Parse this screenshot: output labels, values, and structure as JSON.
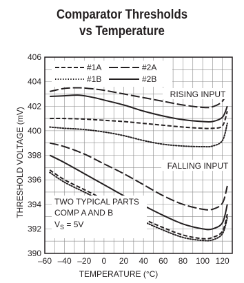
{
  "chart_data": {
    "type": "line",
    "title": [
      "Comparator Thresholds",
      "vs Temperature"
    ],
    "xlabel": "TEMPERATURE (°C)",
    "ylabel": "THRESHOLD VOLTAGE (mV)",
    "xlim": [
      -60,
      130
    ],
    "ylim": [
      390,
      406
    ],
    "xticks": [
      -60,
      -40,
      -20,
      0,
      20,
      40,
      60,
      80,
      100,
      120
    ],
    "xtick_labels": [
      "–60",
      "–40",
      "–20",
      "0",
      "20",
      "40",
      "60",
      "80",
      "100",
      "120"
    ],
    "yticks": [
      390,
      392,
      394,
      396,
      398,
      400,
      402,
      404,
      406
    ],
    "grid": true,
    "legend": {
      "placement": "top-left",
      "entries": [
        {
          "label": "#1A",
          "style": "short-dash"
        },
        {
          "label": "#2A",
          "style": "long-dash"
        },
        {
          "label": "#1B",
          "style": "dotted"
        },
        {
          "label": "#2B",
          "style": "solid"
        }
      ]
    },
    "annotations": [
      {
        "text": "RISING INPUT",
        "x": 96,
        "y": 402.6
      },
      {
        "text": "FALLING INPUT",
        "x": 96,
        "y": 395.2
      },
      {
        "lines": [
          "TWO TYPICAL PARTS",
          "COMP A AND B",
          "V_S = 5V"
        ],
        "placement": "bottom-left"
      }
    ],
    "series": [
      {
        "name": "#2A",
        "group": "rising",
        "style": "long-dash",
        "x": [
          -55,
          -40,
          -25,
          -10,
          0,
          20,
          40,
          60,
          80,
          100,
          110,
          120,
          125
        ],
        "y": [
          403.2,
          403.45,
          403.5,
          403.4,
          403.3,
          403.0,
          402.7,
          402.4,
          402.1,
          401.9,
          401.95,
          402.4,
          403.3
        ]
      },
      {
        "name": "#2B",
        "group": "rising",
        "style": "solid",
        "x": [
          -55,
          -40,
          -25,
          -10,
          0,
          20,
          40,
          60,
          80,
          100,
          110,
          120,
          125
        ],
        "y": [
          402.8,
          402.85,
          402.9,
          402.7,
          402.5,
          402.1,
          401.6,
          401.2,
          400.9,
          400.75,
          400.75,
          401.1,
          402.0
        ]
      },
      {
        "name": "#1A",
        "group": "rising",
        "style": "short-dash",
        "x": [
          -55,
          -40,
          -20,
          0,
          20,
          40,
          60,
          80,
          100,
          110,
          120,
          125
        ],
        "y": [
          401.0,
          401.0,
          400.95,
          400.85,
          400.75,
          400.6,
          400.45,
          400.3,
          400.2,
          400.2,
          400.4,
          401.6
        ]
      },
      {
        "name": "#1B",
        "group": "rising",
        "style": "dotted",
        "x": [
          -55,
          -40,
          -20,
          0,
          20,
          40,
          60,
          80,
          100,
          110,
          120,
          125
        ],
        "y": [
          400.3,
          400.2,
          400.1,
          399.9,
          399.6,
          399.2,
          398.9,
          398.75,
          398.7,
          398.75,
          399.2,
          400.6
        ]
      },
      {
        "name": "#2A",
        "group": "falling",
        "style": "long-dash",
        "x": [
          -55,
          -40,
          -20,
          0,
          20,
          40,
          60,
          80,
          100,
          110,
          120,
          125
        ],
        "y": [
          399.0,
          398.7,
          398.1,
          397.3,
          396.5,
          395.6,
          394.7,
          394.0,
          393.6,
          393.6,
          394.1,
          395.5
        ]
      },
      {
        "name": "#2B",
        "group": "falling",
        "style": "solid",
        "x": [
          -55,
          -40,
          -20,
          0,
          20,
          40,
          60,
          80,
          100,
          110,
          120,
          125
        ],
        "y": [
          398.0,
          397.4,
          396.5,
          395.6,
          394.7,
          393.9,
          393.1,
          392.4,
          392.0,
          392.0,
          392.5,
          394.0
        ]
      },
      {
        "name": "#1A",
        "group": "falling",
        "style": "short-dash",
        "x": [
          -55,
          -40,
          -20,
          0,
          20,
          40,
          60,
          80,
          100,
          110,
          120,
          125
        ],
        "y": [
          396.8,
          396.0,
          395.2,
          394.4,
          393.6,
          392.8,
          392.1,
          391.5,
          391.2,
          391.3,
          391.8,
          393.2
        ]
      },
      {
        "name": "#1B",
        "group": "falling",
        "style": "dotted",
        "x": [
          -55,
          -40,
          -20,
          0,
          20,
          40,
          60,
          80,
          100,
          110,
          120,
          125
        ],
        "y": [
          396.6,
          395.8,
          395.0,
          394.2,
          393.4,
          392.6,
          391.9,
          391.3,
          391.05,
          391.1,
          391.6,
          392.9
        ]
      }
    ]
  }
}
